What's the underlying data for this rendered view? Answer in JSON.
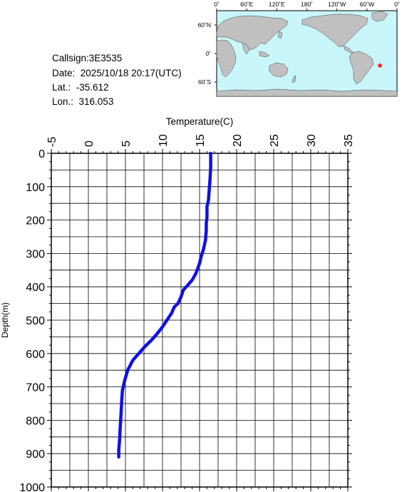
{
  "info": {
    "callsign": "Callsign:3E3535",
    "date": "Date:  2025/10/18 20:17(UTC)",
    "lat": "Lat.:  -35.612",
    "lon": "Lon.:  316.053"
  },
  "map": {
    "lon_ticks": [
      "0˚",
      "60˚E",
      "120˚E",
      "180˚",
      "120˚W",
      "60˚W",
      "0˚"
    ],
    "lat_ticks": [
      "60˚N",
      "0˚",
      "60˚S"
    ],
    "station_lon": 316.053,
    "station_lat": -35.612,
    "colors": {
      "ocean": "#c8f6fa",
      "land": "#c0c0c0",
      "marker": "#ff0000"
    }
  },
  "chart_data": {
    "type": "line",
    "xlabel": "Temperature(C)",
    "ylabel": "Depth(m)",
    "xlim": [
      -5,
      35
    ],
    "ylim": [
      0,
      1000
    ],
    "y_inverted": true,
    "x_ticks": [
      "-5",
      "0",
      "5",
      "10",
      "15",
      "20",
      "25",
      "30",
      "35"
    ],
    "y_ticks": [
      "0",
      "100",
      "200",
      "300",
      "400",
      "500",
      "600",
      "700",
      "800",
      "900",
      "1000"
    ],
    "grid": true,
    "line_color": "#1010e6",
    "series": [
      {
        "x": [
          16.5,
          16.5,
          16.4,
          16.3,
          16.2,
          16.0,
          16.0,
          15.9,
          15.9,
          15.8,
          15.5,
          15.2,
          15.0,
          14.5,
          14.0,
          13.2,
          12.8,
          12.5,
          12.1,
          11.6,
          11.2,
          10.6,
          10.0,
          9.3,
          8.5,
          7.6,
          6.8,
          6.0,
          5.3,
          4.9,
          4.6,
          4.5,
          4.4,
          4.3,
          4.2,
          4.1,
          4.1
        ],
        "y": [
          0,
          40,
          80,
          110,
          140,
          160,
          190,
          210,
          230,
          260,
          290,
          310,
          330,
          360,
          380,
          400,
          410,
          430,
          450,
          460,
          480,
          500,
          520,
          540,
          560,
          580,
          600,
          620,
          650,
          680,
          710,
          740,
          780,
          820,
          860,
          890,
          910
        ]
      }
    ]
  }
}
